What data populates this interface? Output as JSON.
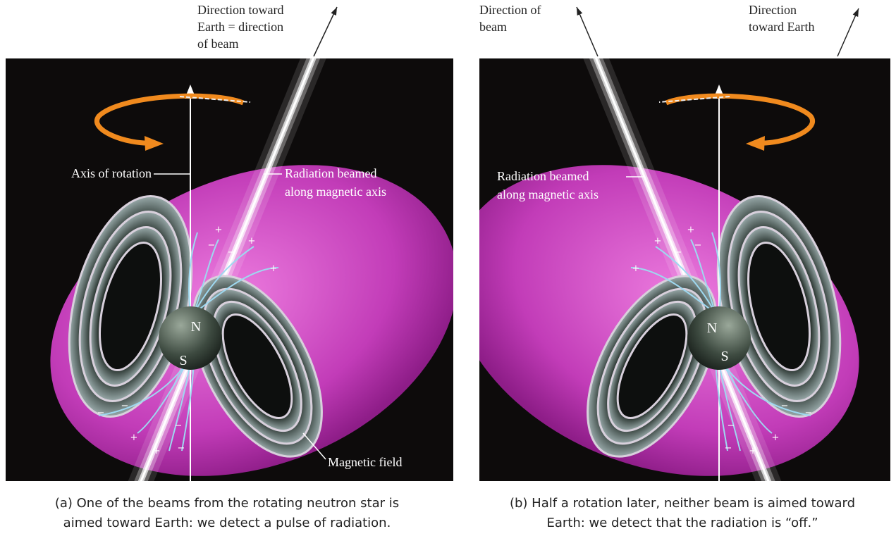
{
  "panels": [
    {
      "earth_label": [
        "Direction toward",
        "Earth = direction",
        "of beam"
      ],
      "axis_label": "Axis of rotation",
      "radiation_label": [
        "Radiation beamed",
        "along magnetic axis"
      ],
      "field_label": "Magnetic field",
      "north": "N",
      "south": "S",
      "charges": [
        "+",
        "−",
        "+",
        "−",
        "+",
        "−",
        "−",
        "+",
        "+",
        "−",
        "−"
      ],
      "caption": [
        "(a) One of the beams from the rotating neutron star is",
        "aimed toward Earth: we detect a pulse of radiation."
      ]
    },
    {
      "beam_label": [
        "Direction of",
        "beam"
      ],
      "earth_label": [
        "Direction",
        "toward Earth"
      ],
      "radiation_label": [
        "Radiation beamed",
        "along magnetic axis"
      ],
      "north": "N",
      "south": "S",
      "charges": [
        "+",
        "−",
        "+",
        "−",
        "+",
        "−",
        "−",
        "+",
        "+",
        "−",
        "−"
      ],
      "caption": [
        "(b) Half a rotation later, neither beam is aimed toward",
        "Earth: we detect that the radiation is “off.”"
      ]
    }
  ]
}
